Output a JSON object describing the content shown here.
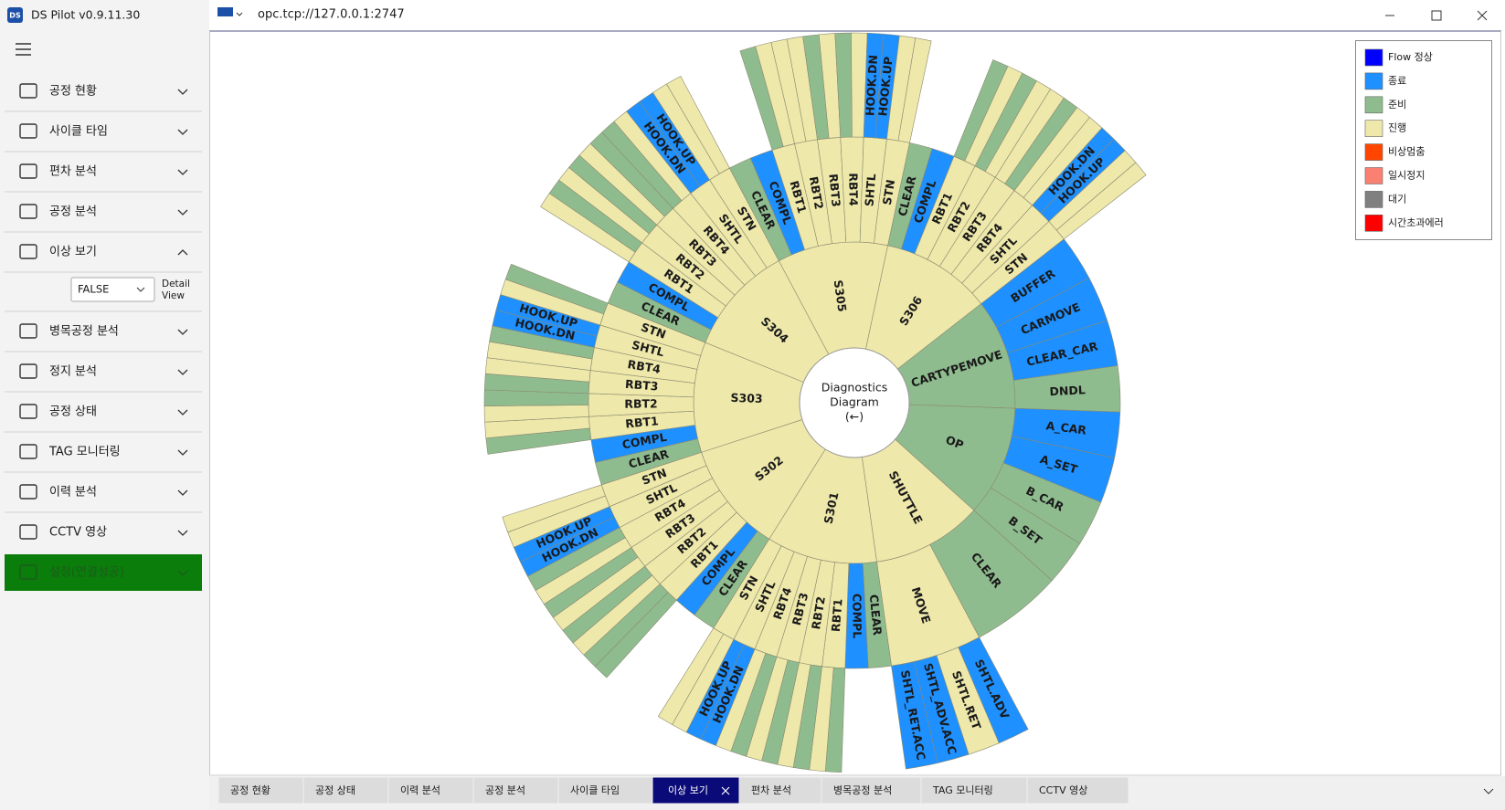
{
  "window": {
    "logo": "DS",
    "title": "DS Pilot v0.9.11.30",
    "address": "opc.tcp://127.0.0.1:2747"
  },
  "menu": [
    {
      "label": "공정 현황"
    },
    {
      "label": "사이클 타임"
    },
    {
      "label": "편차 분석"
    },
    {
      "label": "공정 분석"
    },
    {
      "label": "이상 보기",
      "expanded": true,
      "filter": "FALSE",
      "filter_caption": "Detail View"
    },
    {
      "label": "병목공정 분석"
    },
    {
      "label": "정지 분석"
    },
    {
      "label": "공정 상태"
    },
    {
      "label": "TAG 모니터링"
    },
    {
      "label": "이력 분석"
    },
    {
      "label": "CCTV 영상"
    },
    {
      "label": "설정(연결성공)",
      "color": "#0a7d0a"
    }
  ],
  "legend": [
    {
      "name": "Flow 정상",
      "color": "#0000ff"
    },
    {
      "name": "종료",
      "color": "#1e90ff"
    },
    {
      "name": "준비",
      "color": "#8fbc8f"
    },
    {
      "name": "진행",
      "color": "#eee8aa"
    },
    {
      "name": "비상멈춤",
      "color": "#ff4500"
    },
    {
      "name": "일시정지",
      "color": "#fa8072"
    },
    {
      "name": "대기",
      "color": "#808080"
    },
    {
      "name": "시간초과에러",
      "color": "#ff0000"
    }
  ],
  "diagram": {
    "center": [
      "Diagnostics",
      "Diagram",
      "(←)"
    ],
    "nodes": [
      {
        "label": "S303",
        "color": "#eee8aa",
        "children": [
          {
            "label": "CLEAR",
            "color": "#8fbc8f"
          },
          {
            "label": "COMPL",
            "color": "#1e90ff"
          },
          {
            "label": "RBT1",
            "color": "#eee8aa",
            "children": [
              {
                "label": null,
                "color": "#8fbc8f"
              },
              {
                "label": null,
                "color": "#eee8aa"
              }
            ]
          },
          {
            "label": "RBT2",
            "color": "#eee8aa",
            "children": [
              {
                "label": null,
                "color": "#eee8aa"
              },
              {
                "label": null,
                "color": "#8fbc8f"
              }
            ]
          },
          {
            "label": "RBT3",
            "color": "#eee8aa",
            "children": [
              {
                "label": null,
                "color": "#8fbc8f"
              },
              {
                "label": null,
                "color": "#eee8aa"
              }
            ]
          },
          {
            "label": "RBT4",
            "color": "#eee8aa",
            "children": [
              {
                "label": null,
                "color": "#eee8aa"
              },
              {
                "label": null,
                "color": "#8fbc8f"
              }
            ]
          },
          {
            "label": "SHTL",
            "color": "#eee8aa",
            "children": [
              {
                "label": "HOOK.DN",
                "color": "#1e90ff"
              },
              {
                "label": "HOOK.UP",
                "color": "#1e90ff"
              }
            ]
          },
          {
            "label": "STN",
            "color": "#eee8aa",
            "children": [
              {
                "label": null,
                "color": "#eee8aa"
              },
              {
                "label": null,
                "color": "#8fbc8f"
              }
            ]
          }
        ]
      },
      {
        "label": "S304",
        "color": "#eee8aa",
        "children": [
          {
            "label": "CLEAR",
            "color": "#8fbc8f"
          },
          {
            "label": "COMPL",
            "color": "#1e90ff"
          },
          {
            "label": "RBT1",
            "color": "#eee8aa",
            "children": [
              {
                "label": null,
                "color": "#eee8aa"
              },
              {
                "label": null,
                "color": "#8fbc8f"
              }
            ]
          },
          {
            "label": "RBT2",
            "color": "#eee8aa",
            "children": [
              {
                "label": null,
                "color": "#eee8aa"
              },
              {
                "label": null,
                "color": "#8fbc8f"
              }
            ]
          },
          {
            "label": "RBT3",
            "color": "#eee8aa",
            "children": [
              {
                "label": null,
                "color": "#eee8aa"
              },
              {
                "label": null,
                "color": "#8fbc8f"
              }
            ]
          },
          {
            "label": "RBT4",
            "color": "#eee8aa",
            "children": [
              {
                "label": null,
                "color": "#8fbc8f"
              },
              {
                "label": null,
                "color": "#eee8aa"
              }
            ]
          },
          {
            "label": "SHTL",
            "color": "#eee8aa",
            "children": [
              {
                "label": "HOOK.DN",
                "color": "#1e90ff"
              },
              {
                "label": "HOOK.UP",
                "color": "#1e90ff"
              }
            ]
          },
          {
            "label": "STN",
            "color": "#eee8aa",
            "children": [
              {
                "label": null,
                "color": "#eee8aa"
              },
              {
                "label": null,
                "color": "#eee8aa"
              }
            ]
          }
        ]
      },
      {
        "label": "S305",
        "color": "#eee8aa",
        "children": [
          {
            "label": "CLEAR",
            "color": "#8fbc8f"
          },
          {
            "label": "COMPL",
            "color": "#1e90ff"
          },
          {
            "label": "RBT1",
            "color": "#eee8aa",
            "children": [
              {
                "label": null,
                "color": "#8fbc8f"
              },
              {
                "label": null,
                "color": "#eee8aa"
              }
            ]
          },
          {
            "label": "RBT2",
            "color": "#eee8aa",
            "children": [
              {
                "label": null,
                "color": "#eee8aa"
              },
              {
                "label": null,
                "color": "#eee8aa"
              }
            ]
          },
          {
            "label": "RBT3",
            "color": "#eee8aa",
            "children": [
              {
                "label": null,
                "color": "#8fbc8f"
              },
              {
                "label": null,
                "color": "#eee8aa"
              }
            ]
          },
          {
            "label": "RBT4",
            "color": "#eee8aa",
            "children": [
              {
                "label": null,
                "color": "#8fbc8f"
              },
              {
                "label": null,
                "color": "#eee8aa"
              }
            ]
          },
          {
            "label": "SHTL",
            "color": "#eee8aa",
            "children": [
              {
                "label": "HOOK.DN",
                "color": "#1e90ff"
              },
              {
                "label": "HOOK.UP",
                "color": "#1e90ff"
              }
            ]
          },
          {
            "label": "STN",
            "color": "#eee8aa",
            "children": [
              {
                "label": null,
                "color": "#eee8aa"
              },
              {
                "label": null,
                "color": "#eee8aa"
              }
            ]
          }
        ]
      },
      {
        "label": "S306",
        "color": "#eee8aa",
        "children": [
          {
            "label": "CLEAR",
            "color": "#8fbc8f"
          },
          {
            "label": "COMPL",
            "color": "#1e90ff"
          },
          {
            "label": "RBT1",
            "color": "#eee8aa",
            "children": [
              {
                "label": null,
                "color": "#8fbc8f"
              },
              {
                "label": null,
                "color": "#eee8aa"
              }
            ]
          },
          {
            "label": "RBT2",
            "color": "#eee8aa",
            "children": [
              {
                "label": null,
                "color": "#8fbc8f"
              },
              {
                "label": null,
                "color": "#eee8aa"
              }
            ]
          },
          {
            "label": "RBT3",
            "color": "#eee8aa",
            "children": [
              {
                "label": null,
                "color": "#eee8aa"
              },
              {
                "label": null,
                "color": "#8fbc8f"
              }
            ]
          },
          {
            "label": "RBT4",
            "color": "#eee8aa",
            "children": [
              {
                "label": null,
                "color": "#eee8aa"
              },
              {
                "label": null,
                "color": "#eee8aa"
              }
            ]
          },
          {
            "label": "SHTL",
            "color": "#eee8aa",
            "children": [
              {
                "label": "HOOK.DN",
                "color": "#1e90ff"
              },
              {
                "label": "HOOK.UP",
                "color": "#1e90ff"
              }
            ]
          },
          {
            "label": "STN",
            "color": "#eee8aa",
            "children": [
              {
                "label": null,
                "color": "#eee8aa"
              },
              {
                "label": null,
                "color": "#eee8aa"
              }
            ]
          }
        ]
      },
      {
        "label": "CARTYPEMOVE",
        "color": "#8fbc8f",
        "children": [
          {
            "label": "BUFFER",
            "color": "#1e90ff"
          },
          {
            "label": "CARMOVE",
            "color": "#1e90ff"
          },
          {
            "label": "CLEAR_CAR",
            "color": "#1e90ff"
          },
          {
            "label": "DNDL",
            "color": "#8fbc8f"
          }
        ]
      },
      {
        "label": "OP",
        "color": "#8fbc8f",
        "children": [
          {
            "label": "A_CAR",
            "color": "#1e90ff"
          },
          {
            "label": "A_SET",
            "color": "#1e90ff"
          },
          {
            "label": "B_CAR",
            "color": "#8fbc8f"
          },
          {
            "label": "B_SET",
            "color": "#8fbc8f"
          }
        ]
      },
      {
        "label": "SHUTTLE",
        "color": "#eee8aa",
        "children": [
          {
            "label": "CLEAR",
            "color": "#8fbc8f"
          },
          {
            "label": "MOVE",
            "color": "#eee8aa",
            "children": [
              {
                "label": "SHTL.ADV",
                "color": "#1e90ff"
              },
              {
                "label": "SHTL.RET",
                "color": "#eee8aa"
              },
              {
                "label": "SHTL_ADV.ACC",
                "color": "#1e90ff"
              },
              {
                "label": "SHTL_RET.ACC",
                "color": "#1e90ff"
              }
            ]
          }
        ]
      },
      {
        "label": "S301",
        "color": "#eee8aa",
        "children": [
          {
            "label": "CLEAR",
            "color": "#8fbc8f"
          },
          {
            "label": "COMPL",
            "color": "#1e90ff"
          },
          {
            "label": "RBT1",
            "color": "#eee8aa",
            "children": [
              {
                "label": null,
                "color": "#8fbc8f"
              },
              {
                "label": null,
                "color": "#eee8aa"
              }
            ]
          },
          {
            "label": "RBT2",
            "color": "#eee8aa",
            "children": [
              {
                "label": null,
                "color": "#8fbc8f"
              },
              {
                "label": null,
                "color": "#eee8aa"
              }
            ]
          },
          {
            "label": "RBT3",
            "color": "#eee8aa",
            "children": [
              {
                "label": null,
                "color": "#8fbc8f"
              },
              {
                "label": null,
                "color": "#eee8aa"
              }
            ]
          },
          {
            "label": "RBT4",
            "color": "#eee8aa",
            "children": [
              {
                "label": null,
                "color": "#8fbc8f"
              },
              {
                "label": null,
                "color": "#eee8aa"
              }
            ]
          },
          {
            "label": "SHTL",
            "color": "#eee8aa",
            "children": [
              {
                "label": "HOOK.DN",
                "color": "#1e90ff"
              },
              {
                "label": "HOOK.UP",
                "color": "#1e90ff"
              }
            ]
          },
          {
            "label": "STN",
            "color": "#eee8aa",
            "children": [
              {
                "label": null,
                "color": "#eee8aa"
              },
              {
                "label": null,
                "color": "#eee8aa"
              }
            ]
          }
        ]
      },
      {
        "label": "S302",
        "color": "#eee8aa",
        "children": [
          {
            "label": "CLEAR",
            "color": "#8fbc8f"
          },
          {
            "label": "COMPL",
            "color": "#1e90ff"
          },
          {
            "label": "RBT1",
            "color": "#eee8aa",
            "children": [
              {
                "label": null,
                "color": "#8fbc8f"
              },
              {
                "label": null,
                "color": "#8fbc8f"
              }
            ]
          },
          {
            "label": "RBT2",
            "color": "#eee8aa",
            "children": [
              {
                "label": null,
                "color": "#eee8aa"
              },
              {
                "label": null,
                "color": "#8fbc8f"
              }
            ]
          },
          {
            "label": "RBT3",
            "color": "#eee8aa",
            "children": [
              {
                "label": null,
                "color": "#eee8aa"
              },
              {
                "label": null,
                "color": "#8fbc8f"
              }
            ]
          },
          {
            "label": "RBT4",
            "color": "#eee8aa",
            "children": [
              {
                "label": null,
                "color": "#eee8aa"
              },
              {
                "label": null,
                "color": "#8fbc8f"
              }
            ]
          },
          {
            "label": "SHTL",
            "color": "#eee8aa",
            "children": [
              {
                "label": "HOOK.DN",
                "color": "#1e90ff"
              },
              {
                "label": "HOOK.UP",
                "color": "#1e90ff"
              }
            ]
          },
          {
            "label": "STN",
            "color": "#eee8aa",
            "children": [
              {
                "label": null,
                "color": "#eee8aa"
              },
              {
                "label": null,
                "color": "#eee8aa"
              }
            ]
          }
        ]
      }
    ]
  },
  "tabs": [
    {
      "label": "공정 현황"
    },
    {
      "label": "공정 상태"
    },
    {
      "label": "이력 분석"
    },
    {
      "label": "공정 분석"
    },
    {
      "label": "사이클 타임"
    },
    {
      "label": "이상 보기",
      "active": true
    },
    {
      "label": "편차 분석"
    },
    {
      "label": "병목공정 분석"
    },
    {
      "label": "TAG 모니터링"
    },
    {
      "label": "CCTV 영상"
    }
  ]
}
